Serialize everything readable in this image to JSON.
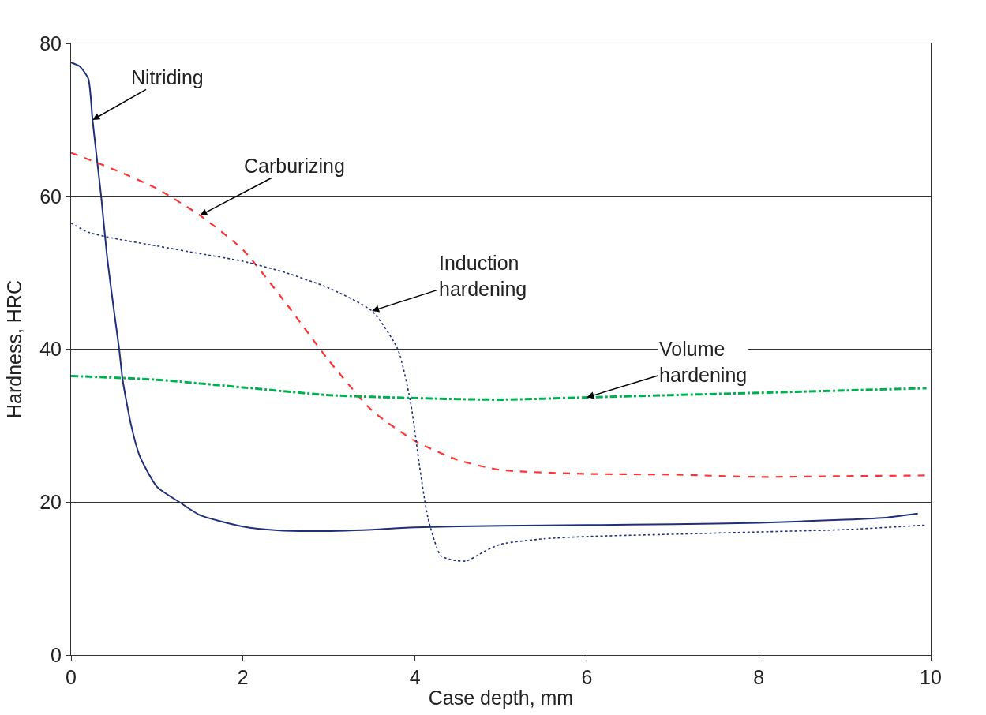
{
  "chart_data": {
    "type": "line",
    "xlabel": "Case depth, mm",
    "ylabel": "Hardness, HRC",
    "xlim": [
      0,
      10
    ],
    "ylim": [
      0,
      80
    ],
    "xticks": [
      0,
      2,
      4,
      6,
      8,
      10
    ],
    "yticks": [
      0,
      20,
      40,
      60,
      80
    ],
    "grid": "y",
    "marker": "none",
    "series": [
      {
        "color": "#1f2f7a",
        "line_style": "solid",
        "x": [
          0,
          0.1,
          0.2,
          0.25,
          0.3,
          0.35,
          0.42,
          0.5,
          0.56,
          0.6,
          0.7,
          0.8,
          1.0,
          1.26,
          1.5,
          2,
          2.4,
          2.8,
          3.5,
          4,
          5,
          6,
          7,
          8,
          9,
          9.5,
          9.85
        ],
        "values": [
          77.5,
          77,
          75.4,
          70,
          65,
          60,
          52,
          45,
          40,
          36,
          30,
          26,
          22,
          20,
          18.3,
          16.8,
          16.3,
          16.2,
          16.4,
          16.7,
          16.9,
          17,
          17.1,
          17.3,
          17.7,
          18,
          18.5
        ]
      },
      {
        "color": "#ff3333",
        "line_style": "dashed",
        "x": [
          0,
          0.5,
          1,
          1.5,
          2,
          2.5,
          3,
          3.5,
          4,
          4.5,
          5,
          6,
          7,
          8,
          9,
          10
        ],
        "values": [
          65.7,
          63.5,
          61,
          57.5,
          53,
          46,
          38.5,
          32,
          28,
          25.5,
          24.2,
          23.7,
          23.6,
          23.3,
          23.4,
          23.5
        ]
      },
      {
        "color": "#1f2f7a",
        "line_style": "dotted",
        "x": [
          0,
          0.2,
          0.5,
          1,
          1.5,
          2,
          2.5,
          3,
          3.5,
          3.8,
          3.95,
          4.05,
          4.15,
          4.3,
          4.45,
          4.6,
          4.8,
          5,
          5.5,
          6,
          7,
          8,
          9,
          9.95
        ],
        "values": [
          56.5,
          55.3,
          54.5,
          53.5,
          52.5,
          51.5,
          50,
          48,
          45,
          40,
          33,
          25,
          18,
          13,
          12.4,
          12.3,
          13.5,
          14.5,
          15.2,
          15.5,
          15.8,
          16.1,
          16.4,
          17
        ]
      },
      {
        "color": "#00b050",
        "line_style": "dashdot",
        "x": [
          0,
          1,
          2,
          3,
          4,
          5,
          6,
          7,
          8,
          9,
          9.95
        ],
        "values": [
          36.5,
          36,
          35,
          34,
          33.6,
          33.4,
          33.7,
          34,
          34.3,
          34.6,
          34.9
        ]
      }
    ],
    "annotations": [
      {
        "text": "Nitriding",
        "x": 0.25,
        "y": 70
      },
      {
        "text": "Carburizing",
        "x": 1.5,
        "y": 57.5
      },
      {
        "text": "Induction\nhardening",
        "x": 3.5,
        "y": 45
      },
      {
        "text": "Volume\nhardening",
        "x": 6,
        "y": 33.7
      }
    ]
  }
}
